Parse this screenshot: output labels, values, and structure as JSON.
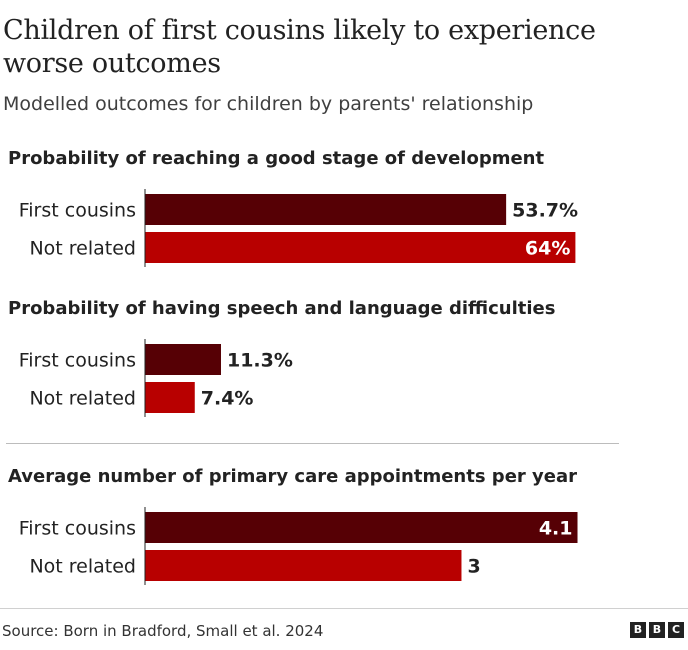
{
  "header": {
    "title": "Children of first cousins likely to experience worse outcomes",
    "subtitle": "Modelled outcomes for children by parents' relationship"
  },
  "colors": {
    "first_cousins": "#560005",
    "not_related": "#b80000",
    "text": "#222222",
    "inside_label": "#ffffff"
  },
  "chart_data": [
    {
      "type": "bar",
      "orientation": "horizontal",
      "title": "Probability of reaching a good stage of development",
      "categories": [
        "First cousins",
        "Not related"
      ],
      "values": [
        53.7,
        64
      ],
      "value_labels": [
        "53.7%",
        "64%"
      ],
      "xlim": [
        0,
        80
      ]
    },
    {
      "type": "bar",
      "orientation": "horizontal",
      "title": "Probability of having speech and language difficulties",
      "categories": [
        "First cousins",
        "Not related"
      ],
      "values": [
        11.3,
        7.4
      ],
      "value_labels": [
        "11.3%",
        "7.4%"
      ],
      "xlim": [
        0,
        80
      ]
    },
    {
      "type": "bar",
      "orientation": "horizontal",
      "title": "Average number of primary care appointments per year",
      "categories": [
        "First cousins",
        "Not related"
      ],
      "values": [
        4.1,
        3
      ],
      "value_labels": [
        "4.1",
        "3"
      ],
      "xlim": [
        0,
        5.1
      ]
    }
  ],
  "footer": {
    "source": "Source: Born in Bradford, Small et al. 2024",
    "logo": [
      "B",
      "B",
      "C"
    ]
  }
}
